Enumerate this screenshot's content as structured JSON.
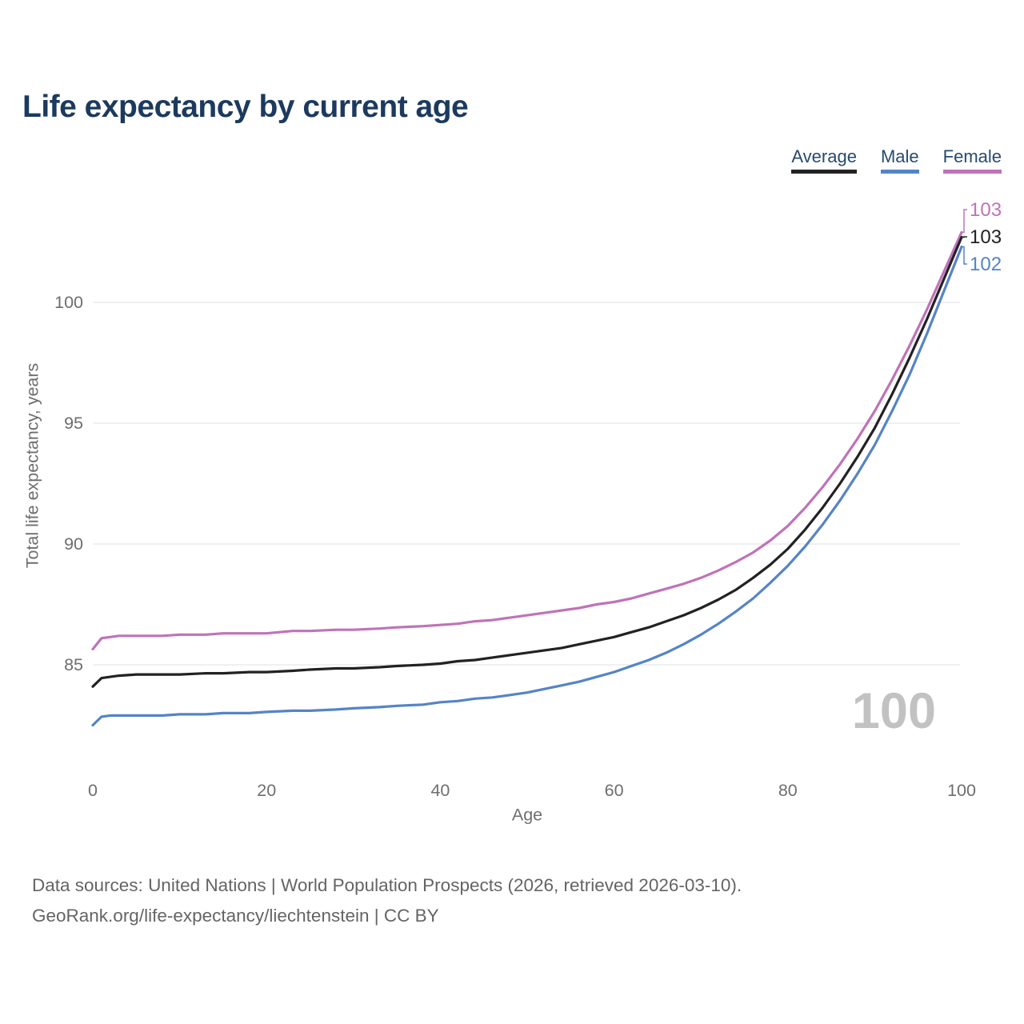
{
  "header": {
    "title": "Life expectancy by current age"
  },
  "axes": {
    "x_title": "Age",
    "y_title": "Total life expectancy, years"
  },
  "watermark": "100",
  "footer": {
    "line1": "Data sources: United Nations | World Population Prospects (2026, retrieved 2026-03-10).",
    "line2": "GeoRank.org/life-expectancy/liechtenstein | CC BY"
  },
  "colors": {
    "title": "#1b3a5e",
    "legend_text": "#274a6e",
    "grid": "#e7e7e7",
    "tick_text": "#6e6e6e",
    "watermark": "#c2c2c2",
    "footer_text": "#646464"
  },
  "chart_data": {
    "type": "line",
    "title": "Life expectancy by current age",
    "xlabel": "Age",
    "ylabel": "Total life expectancy, years",
    "xlim": [
      0,
      100
    ],
    "ylim": [
      82,
      103.5
    ],
    "xticks": [
      0,
      20,
      40,
      60,
      80,
      100
    ],
    "yticks": [
      100,
      95,
      90,
      85
    ],
    "grid": "horizontal-only",
    "legend_position": "top-right",
    "x": [
      0,
      1,
      2,
      3,
      5,
      8,
      10,
      13,
      15,
      18,
      20,
      23,
      25,
      28,
      30,
      33,
      35,
      38,
      40,
      42,
      44,
      46,
      48,
      50,
      52,
      54,
      56,
      58,
      60,
      62,
      64,
      66,
      68,
      70,
      72,
      74,
      76,
      78,
      80,
      82,
      84,
      86,
      88,
      90,
      92,
      94,
      96,
      98,
      100
    ],
    "series": [
      {
        "name": "Average",
        "color": "#222222",
        "end_label": "103",
        "values": [
          84.1,
          84.45,
          84.5,
          84.55,
          84.6,
          84.6,
          84.6,
          84.65,
          84.65,
          84.7,
          84.7,
          84.75,
          84.8,
          84.85,
          84.85,
          84.9,
          84.95,
          85.0,
          85.05,
          85.15,
          85.2,
          85.3,
          85.4,
          85.5,
          85.6,
          85.7,
          85.85,
          86.0,
          86.15,
          86.35,
          86.55,
          86.8,
          87.05,
          87.35,
          87.7,
          88.1,
          88.6,
          89.15,
          89.8,
          90.6,
          91.5,
          92.5,
          93.6,
          94.8,
          96.2,
          97.7,
          99.3,
          101.0,
          102.7
        ]
      },
      {
        "name": "Male",
        "color": "#5584c7",
        "end_label": "102",
        "values": [
          82.5,
          82.85,
          82.9,
          82.9,
          82.9,
          82.9,
          82.95,
          82.95,
          83.0,
          83.0,
          83.05,
          83.1,
          83.1,
          83.15,
          83.2,
          83.25,
          83.3,
          83.35,
          83.45,
          83.5,
          83.6,
          83.65,
          83.75,
          83.85,
          84.0,
          84.15,
          84.3,
          84.5,
          84.7,
          84.95,
          85.2,
          85.5,
          85.85,
          86.25,
          86.7,
          87.2,
          87.75,
          88.4,
          89.1,
          89.9,
          90.8,
          91.8,
          92.9,
          94.1,
          95.5,
          97.0,
          98.7,
          100.5,
          102.3
        ]
      },
      {
        "name": "Female",
        "color": "#bf73b8",
        "end_label": "103",
        "values": [
          85.65,
          86.1,
          86.15,
          86.2,
          86.2,
          86.2,
          86.25,
          86.25,
          86.3,
          86.3,
          86.3,
          86.4,
          86.4,
          86.45,
          86.45,
          86.5,
          86.55,
          86.6,
          86.65,
          86.7,
          86.8,
          86.85,
          86.95,
          87.05,
          87.15,
          87.25,
          87.35,
          87.5,
          87.6,
          87.75,
          87.95,
          88.15,
          88.35,
          88.6,
          88.9,
          89.25,
          89.65,
          90.15,
          90.75,
          91.5,
          92.35,
          93.3,
          94.35,
          95.5,
          96.8,
          98.2,
          99.7,
          101.3,
          102.9
        ]
      }
    ]
  }
}
